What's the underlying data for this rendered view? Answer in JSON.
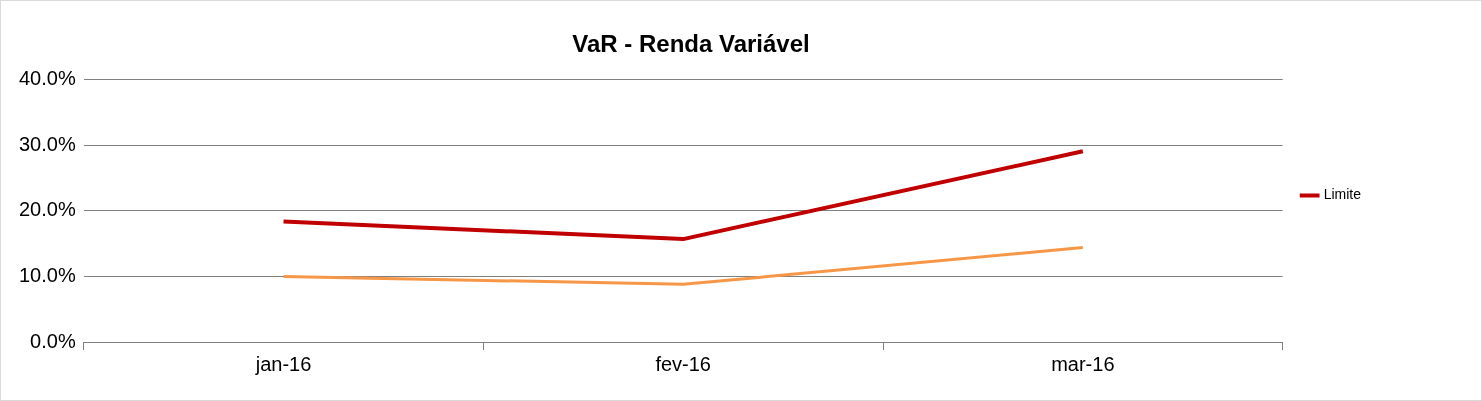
{
  "chart_data": {
    "type": "line",
    "title": "VaR - Renda Variável",
    "categories": [
      "jan-16",
      "fev-16",
      "mar-16"
    ],
    "series": [
      {
        "name": "Limite",
        "color": "#c00000",
        "values": [
          18.4,
          15.7,
          29.1
        ]
      },
      {
        "color": "#f79646",
        "values": [
          10.0,
          8.8,
          14.4
        ]
      }
    ],
    "ylim": [
      0,
      40
    ],
    "yticks": [
      {
        "value": 0,
        "label": "0.0%"
      },
      {
        "value": 10,
        "label": "10.0%"
      },
      {
        "value": 20,
        "label": "20.0%"
      },
      {
        "value": 30,
        "label": "30.0%"
      },
      {
        "value": 40,
        "label": "40.0%"
      }
    ],
    "grid": "y",
    "legend": "right",
    "line_style": "solid"
  }
}
